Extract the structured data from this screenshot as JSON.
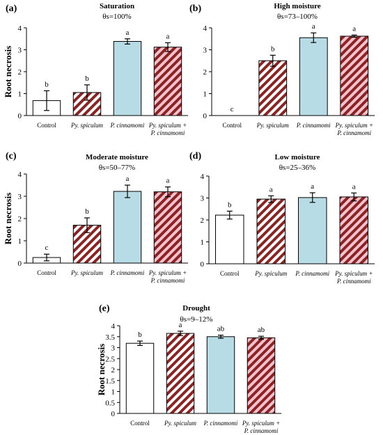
{
  "figure": {
    "colors": {
      "white_bar": "#ffffff",
      "hatch_red": "#8b2323",
      "hatch_pink": "#f4c2cf",
      "blue_bar": "#b8dce6",
      "hatch_blue_red": "#8b2323",
      "hatch_blue_pink": "#f0c6d6",
      "axis": "#000000"
    }
  },
  "chart_data": [
    {
      "id": "a",
      "type": "bar",
      "panel_label": "(a)",
      "title": "Saturation",
      "subtitle": "θs=100%",
      "ylabel": "Root necrosis",
      "ylim": [
        0,
        4
      ],
      "yticks": [
        "0",
        "1",
        "2",
        "3",
        "4"
      ],
      "categories": [
        {
          "lines": [
            "Control"
          ],
          "italic": false
        },
        {
          "lines": [
            "Py. spiculum"
          ],
          "italic": true
        },
        {
          "lines": [
            "P. cinnamomi"
          ],
          "italic": true
        },
        {
          "lines": [
            "Py. spiculum +",
            "P. cinnamomi"
          ],
          "italic": true
        }
      ],
      "values": [
        0.68,
        1.05,
        3.38,
        3.12
      ],
      "errors": [
        0.45,
        0.35,
        0.12,
        0.2
      ],
      "significance": [
        "b",
        "b",
        "a",
        "a"
      ],
      "styles": [
        "white",
        "hatch",
        "blue",
        "hatchpink"
      ]
    },
    {
      "id": "b",
      "type": "bar",
      "panel_label": "(b)",
      "title": "High moisture",
      "subtitle": "θs=73–100%",
      "ylabel": "",
      "ylim": [
        0,
        4
      ],
      "yticks": [
        "0",
        "1",
        "2",
        "3",
        "4"
      ],
      "categories": [
        {
          "lines": [
            "Control"
          ],
          "italic": false
        },
        {
          "lines": [
            "Py. spiculum"
          ],
          "italic": true
        },
        {
          "lines": [
            "P. cinnamomi"
          ],
          "italic": true
        },
        {
          "lines": [
            "Py. spiculum +",
            "P. cinnamomi"
          ],
          "italic": true
        }
      ],
      "values": [
        0,
        2.5,
        3.55,
        3.62
      ],
      "errors": [
        0,
        0.25,
        0.22,
        0.05
      ],
      "significance": [
        "c",
        "b",
        "a",
        "a"
      ],
      "styles": [
        "white",
        "hatch",
        "blue",
        "hatchpink"
      ]
    },
    {
      "id": "c",
      "type": "bar",
      "panel_label": "(c)",
      "title": "Moderate moisture",
      "subtitle": "θs=50–77%",
      "ylabel": "Root necrosis",
      "ylim": [
        0,
        4
      ],
      "yticks": [
        "0",
        "1",
        "2",
        "3",
        "4"
      ],
      "categories": [
        {
          "lines": [
            "Control"
          ],
          "italic": false
        },
        {
          "lines": [
            "Py. spiculum"
          ],
          "italic": true
        },
        {
          "lines": [
            "P. cinnamomi"
          ],
          "italic": true
        },
        {
          "lines": [
            "Py. spiculum +",
            "P. cinnamomi"
          ],
          "italic": true
        }
      ],
      "values": [
        0.25,
        1.7,
        3.22,
        3.2
      ],
      "errors": [
        0.15,
        0.33,
        0.28,
        0.22
      ],
      "significance": [
        "c",
        "b",
        "a",
        "a"
      ],
      "styles": [
        "white",
        "hatch",
        "blue",
        "hatchpink"
      ]
    },
    {
      "id": "d",
      "type": "bar",
      "panel_label": "(d)",
      "title": "Low moisture",
      "subtitle": "θs=25–36%",
      "ylabel": "",
      "ylim": [
        0,
        4
      ],
      "yticks": [
        "0",
        "1",
        "2",
        "3",
        "4"
      ],
      "categories": [
        {
          "lines": [
            "Control"
          ],
          "italic": false
        },
        {
          "lines": [
            "Py. spiculum"
          ],
          "italic": true
        },
        {
          "lines": [
            "P. cinnamomi"
          ],
          "italic": true
        },
        {
          "lines": [
            "Py. spiculum +",
            "P. cinnamomi"
          ],
          "italic": true
        }
      ],
      "values": [
        2.22,
        2.95,
        3.02,
        3.05
      ],
      "errors": [
        0.18,
        0.15,
        0.22,
        0.18
      ],
      "significance": [
        "b",
        "a",
        "a",
        "a"
      ],
      "styles": [
        "white",
        "hatch",
        "blue",
        "hatchpink"
      ]
    },
    {
      "id": "e",
      "type": "bar",
      "panel_label": "(e)",
      "title": "Drought",
      "subtitle": "θs=9–12%",
      "ylabel": "Root necrosis",
      "ylim": [
        0,
        4
      ],
      "yticks": [
        "0",
        "0.5",
        "1",
        "1.5",
        "2",
        "2.5",
        "3",
        "3.5",
        "4"
      ],
      "categories": [
        {
          "lines": [
            "Control"
          ],
          "italic": false
        },
        {
          "lines": [
            "Py. spiculum"
          ],
          "italic": true
        },
        {
          "lines": [
            "P. cinnamomi"
          ],
          "italic": true
        },
        {
          "lines": [
            "Py. spiculum +",
            "P. cinnamomi"
          ],
          "italic": true
        }
      ],
      "values": [
        3.2,
        3.65,
        3.5,
        3.45
      ],
      "errors": [
        0.1,
        0.1,
        0.07,
        0.07
      ],
      "significance": [
        "b",
        "a",
        "ab",
        "ab"
      ],
      "styles": [
        "white",
        "hatch",
        "blue",
        "hatchpink"
      ]
    }
  ]
}
